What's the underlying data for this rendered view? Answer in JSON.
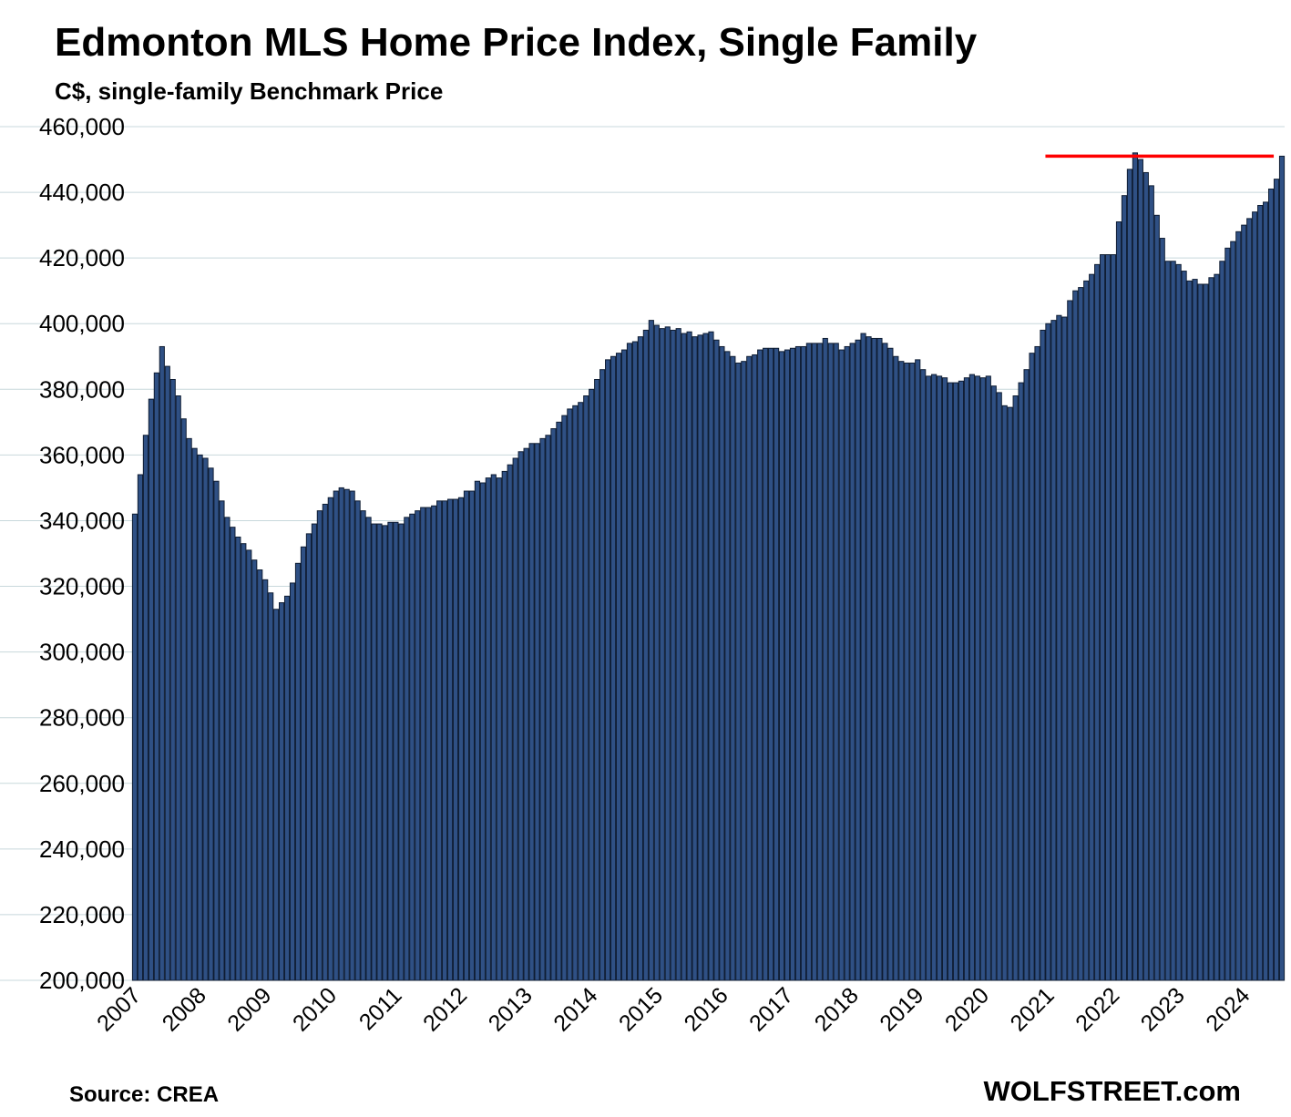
{
  "title": "Edmonton MLS Home Price Index, Single Family",
  "subtitle": "C$, single-family Benchmark Price",
  "source": "Source: CREA",
  "brand": "WOLFSTREET.com",
  "colors": {
    "bar": "#2f5084",
    "bar_edge": "#0f1d33",
    "grid": "#c8d8dc",
    "reference_line": "#ff0000"
  },
  "chart_data": {
    "type": "bar",
    "title": "Edmonton MLS Home Price Index, Single Family",
    "subtitle": "C$, single-family Benchmark Price",
    "ylim": [
      200000,
      460000
    ],
    "yticks": [
      "200,000",
      "220,000",
      "240,000",
      "260,000",
      "280,000",
      "300,000",
      "320,000",
      "340,000",
      "360,000",
      "380,000",
      "400,000",
      "420,000",
      "440,000",
      "460,000"
    ],
    "x_tick_labels": [
      "2007",
      "2008",
      "2009",
      "2010",
      "2011",
      "2012",
      "2013",
      "2014",
      "2015",
      "2016",
      "2017",
      "2018",
      "2019",
      "2020",
      "2021",
      "2022",
      "2023",
      "2024"
    ],
    "start": "2007-01",
    "frequency": "monthly",
    "grid": "horizontal",
    "reference_line": {
      "value": 451000,
      "from": "2021-01",
      "to": "2024-06"
    },
    "values": [
      342000,
      354000,
      366000,
      377000,
      385000,
      393000,
      387000,
      383000,
      378000,
      371000,
      365000,
      362000,
      360000,
      359000,
      356000,
      352000,
      346000,
      341000,
      338000,
      335000,
      333000,
      331000,
      328000,
      325000,
      322000,
      318000,
      313000,
      315000,
      317000,
      321000,
      327000,
      332000,
      336000,
      339000,
      343000,
      345000,
      347000,
      349000,
      350000,
      349500,
      349000,
      346000,
      343000,
      341000,
      339000,
      339000,
      338500,
      339500,
      339500,
      339000,
      341000,
      342000,
      343000,
      344000,
      344000,
      344500,
      346000,
      346000,
      346500,
      346500,
      347000,
      349000,
      349000,
      352000,
      351500,
      353000,
      354000,
      353000,
      355000,
      357000,
      359000,
      361000,
      362000,
      363500,
      363500,
      365000,
      366000,
      368000,
      370000,
      372000,
      374000,
      375000,
      376000,
      378000,
      380000,
      383000,
      386000,
      389000,
      390000,
      391000,
      392000,
      394000,
      394500,
      396000,
      398000,
      401000,
      399500,
      398500,
      399000,
      398000,
      398500,
      397000,
      397500,
      396000,
      396500,
      397000,
      397500,
      395000,
      393000,
      391500,
      390000,
      388000,
      388500,
      390000,
      390500,
      392000,
      392500,
      392500,
      392500,
      391500,
      392000,
      392500,
      393000,
      393000,
      394000,
      394000,
      394000,
      395500,
      394000,
      394000,
      392000,
      393000,
      394000,
      395000,
      397000,
      396000,
      395500,
      395500,
      394000,
      392500,
      390000,
      388500,
      388000,
      388000,
      389000,
      386000,
      384000,
      384500,
      384000,
      383500,
      382000,
      382000,
      382500,
      383500,
      384500,
      384000,
      383500,
      384000,
      381000,
      379000,
      375000,
      374500,
      378000,
      382000,
      386000,
      391000,
      393000,
      398000,
      400000,
      401000,
      402500,
      402000,
      407000,
      410000,
      411000,
      413000,
      415000,
      418000,
      421000,
      421000,
      421000,
      431000,
      439000,
      447000,
      452000,
      450000,
      446000,
      442000,
      433000,
      426000,
      419000,
      419000,
      418000,
      416000,
      413000,
      413500,
      412000,
      412000,
      414000,
      415000,
      419000,
      423000,
      425000,
      428000,
      430000,
      432000,
      434000,
      436000,
      437000,
      441000,
      444000,
      451000
    ]
  }
}
